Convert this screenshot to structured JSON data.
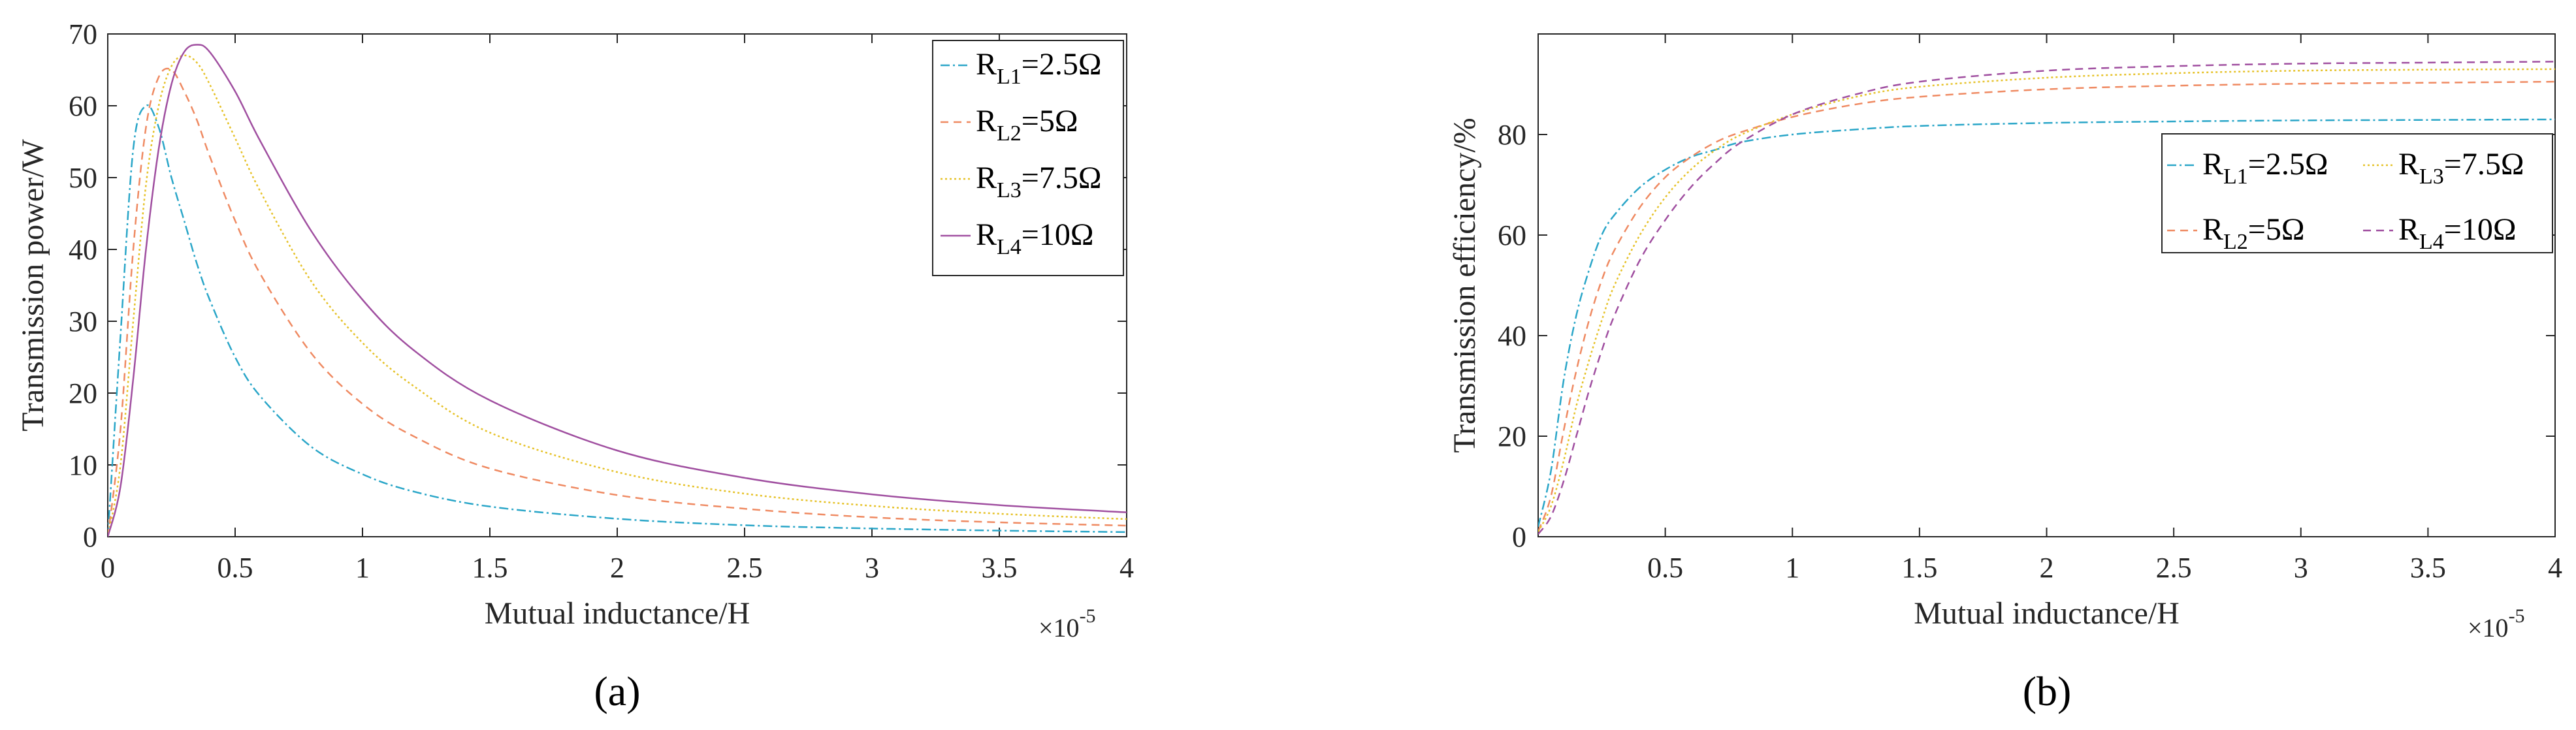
{
  "chart_data": [
    {
      "panel": "(a)",
      "type": "line",
      "xlabel": "Mutual inductance/H",
      "ylabel": "Transmission power/W",
      "x_multiplier": "×10",
      "x_multiplier_exp": "-5",
      "xlim": [
        0,
        4
      ],
      "ylim": [
        0,
        70
      ],
      "xticks": [
        "0",
        "0.5",
        "1",
        "1.5",
        "2",
        "2.5",
        "3",
        "3.5",
        "4"
      ],
      "yticks": [
        "0",
        "10",
        "20",
        "30",
        "40",
        "50",
        "60",
        "70"
      ],
      "grid": false,
      "legend_position": "top-right",
      "x": [
        0,
        0.05,
        0.1,
        0.15,
        0.2,
        0.25,
        0.3,
        0.35,
        0.4,
        0.5,
        0.6,
        0.8,
        1.0,
        1.2,
        1.5,
        2.0,
        2.5,
        3.0,
        3.5,
        4.0
      ],
      "series": [
        {
          "name": "RL1=2.5Ω",
          "base": "R",
          "sub": "L1",
          "rest": "=2.5Ω",
          "color": "#2aa6c8",
          "dash": "14 5 3 5",
          "values": [
            0,
            28,
            54,
            60,
            57,
            50,
            44,
            38,
            33,
            25,
            19.5,
            12.5,
            8.7,
            6.3,
            4.2,
            2.5,
            1.6,
            1.15,
            0.85,
            0.65
          ]
        },
        {
          "name": "RL2=5Ω",
          "base": "R",
          "sub": "L2",
          "rest": "=5Ω",
          "color": "#ef8a62",
          "dash": "12 8",
          "values": [
            0,
            15,
            40,
            57,
            64,
            65,
            62,
            58,
            53,
            44,
            36.5,
            25.5,
            18.5,
            14,
            9.5,
            5.8,
            3.9,
            2.7,
            2.0,
            1.55
          ]
        },
        {
          "name": "RL3=7.5Ω",
          "base": "R",
          "sub": "L3",
          "rest": "=7.5Ω",
          "color": "#e6c229",
          "dash": "3 4",
          "values": [
            0,
            10,
            30,
            49,
            60,
            65.5,
            67,
            66,
            63,
            55.5,
            48,
            35.5,
            27,
            21,
            14.5,
            9.0,
            6.0,
            4.3,
            3.2,
            2.45
          ]
        },
        {
          "name": "RL4=10Ω",
          "base": "R",
          "sub": "L4",
          "rest": "=10Ω",
          "color": "#a04fa0",
          "dash": "",
          "values": [
            0,
            7,
            22,
            40,
            54,
            63,
            67.5,
            68.5,
            67.5,
            62,
            55,
            42.5,
            33,
            26,
            19,
            12,
            8.2,
            5.9,
            4.4,
            3.4
          ]
        }
      ]
    },
    {
      "panel": "(b)",
      "type": "line",
      "xlabel": "Mutual inductance/H",
      "ylabel": "Transmission efficiency/%",
      "x_multiplier": "×10",
      "x_multiplier_exp": "-5",
      "xlim": [
        0,
        4
      ],
      "ylim": [
        0,
        100
      ],
      "xticks": [
        "0.5",
        "1",
        "1.5",
        "2",
        "2.5",
        "3",
        "3.5",
        "4"
      ],
      "yticks": [
        "0",
        "20",
        "40",
        "60",
        "80"
      ],
      "grid": false,
      "legend_position": "upper-right, two columns",
      "x": [
        0,
        0.05,
        0.1,
        0.15,
        0.2,
        0.25,
        0.3,
        0.4,
        0.5,
        0.6,
        0.7,
        0.8,
        1.0,
        1.25,
        1.5,
        2.0,
        2.5,
        3.0,
        3.5,
        4.0
      ],
      "series": [
        {
          "name": "RL1=2.5Ω",
          "base": "R",
          "sub": "L1",
          "rest": "=2.5Ω",
          "color": "#2aa6c8",
          "dash": "14 5 3 5",
          "values": [
            2,
            13,
            31,
            44,
            53,
            60,
            64,
            69.5,
            73,
            75.5,
            77,
            78.5,
            80,
            81,
            81.7,
            82.3,
            82.6,
            82.8,
            82.9,
            83
          ]
        },
        {
          "name": "RL2=5Ω",
          "base": "R",
          "sub": "L2",
          "rest": "=5Ω",
          "color": "#ef8a62",
          "dash": "12 8",
          "values": [
            1,
            8,
            21,
            33,
            43,
            51,
            57,
            65.5,
            71.5,
            75.5,
            78.5,
            80.5,
            83.5,
            86,
            87.5,
            89,
            89.7,
            90.1,
            90.3,
            90.5
          ]
        },
        {
          "name": "RL3=7.5Ω",
          "base": "R",
          "sub": "L3",
          "rest": "=7.5Ω",
          "color": "#e6c229",
          "dash": "3 4",
          "values": [
            1,
            6,
            15,
            26,
            35,
            43,
            50,
            60,
            67.5,
            73,
            77,
            80,
            84,
            87.5,
            89.5,
            91.3,
            92.2,
            92.7,
            92.9,
            93
          ]
        },
        {
          "name": "RL4=10Ω",
          "base": "R",
          "sub": "L4",
          "rest": "=10Ω",
          "color": "#a04fa0",
          "dash": "12 8",
          "values": [
            0.5,
            4,
            11,
            20,
            29,
            37,
            44,
            55,
            63,
            69.5,
            74.5,
            78.5,
            84,
            88,
            90.5,
            92.7,
            93.6,
            94.1,
            94.3,
            94.5
          ]
        }
      ]
    }
  ]
}
